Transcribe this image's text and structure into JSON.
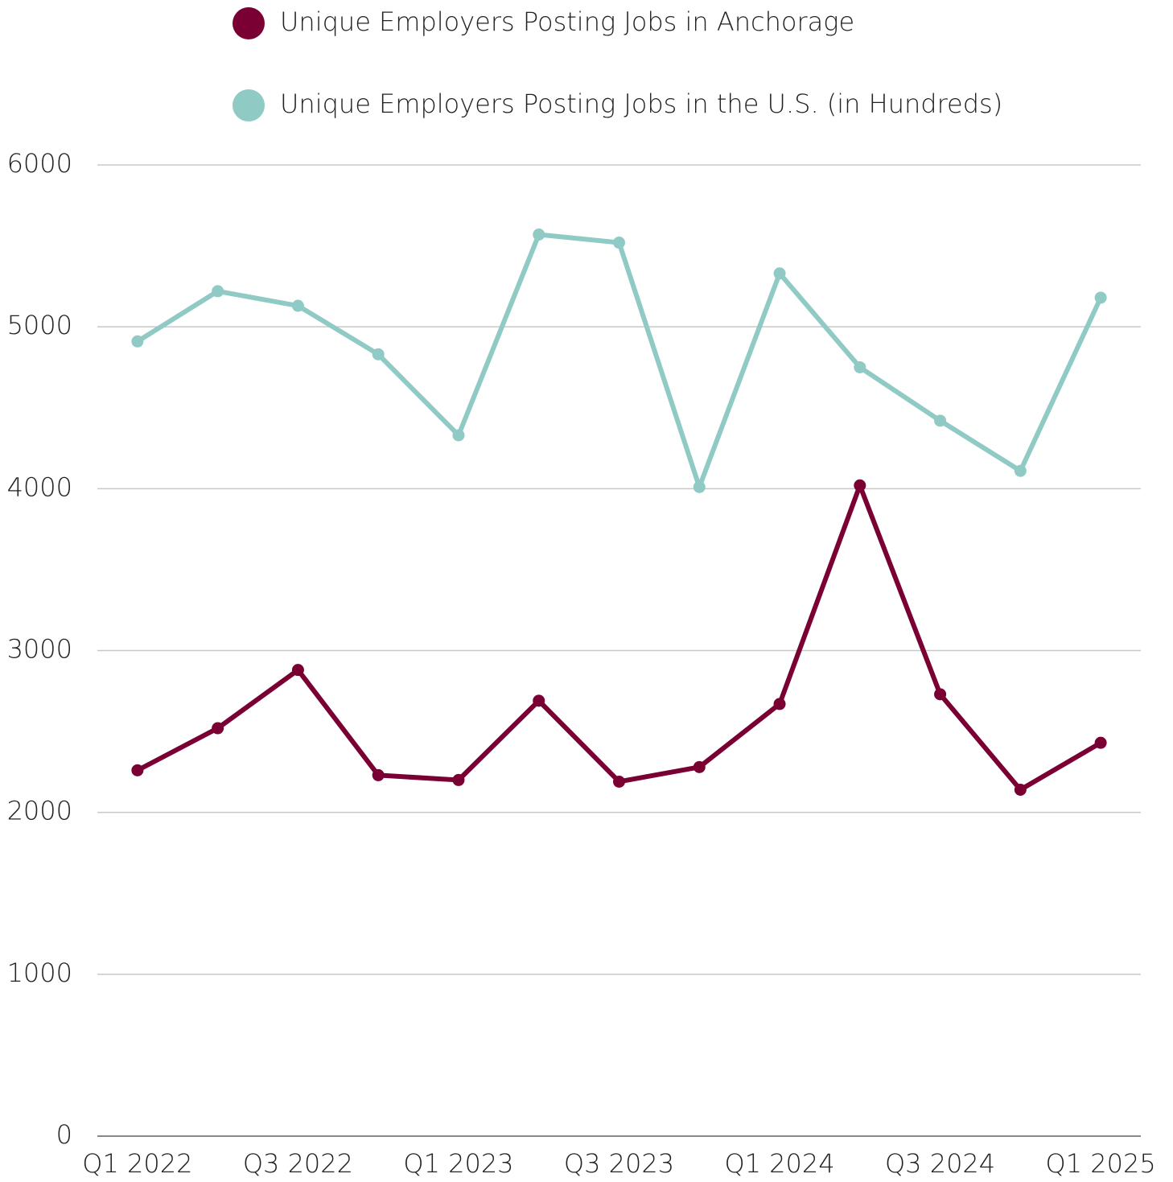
{
  "chart_data": {
    "type": "line",
    "categories": [
      "Q1 2022",
      null,
      "Q3 2022",
      null,
      "Q1 2023",
      null,
      "Q3 2023",
      null,
      "Q1 2024",
      null,
      "Q3 2024",
      null,
      "Q1 2025"
    ],
    "series": [
      {
        "name": "Unique Employers Posting Jobs in Anchorage",
        "color": "#7a0034",
        "values": [
          2260,
          2520,
          2880,
          2230,
          2200,
          2690,
          2190,
          2280,
          2670,
          4020,
          2730,
          2140,
          2430
        ]
      },
      {
        "name": "Unique Employers Posting Jobs in the U.S. (in Hundreds)",
        "color": "#90cac4",
        "values": [
          4910,
          5220,
          5130,
          4830,
          4330,
          5570,
          5520,
          4010,
          5330,
          4750,
          4420,
          4110,
          5180
        ]
      }
    ],
    "ylim": [
      0,
      6000
    ],
    "yticks": [
      0,
      1000,
      2000,
      3000,
      4000,
      5000,
      6000
    ],
    "grid": true,
    "legend": "top"
  }
}
